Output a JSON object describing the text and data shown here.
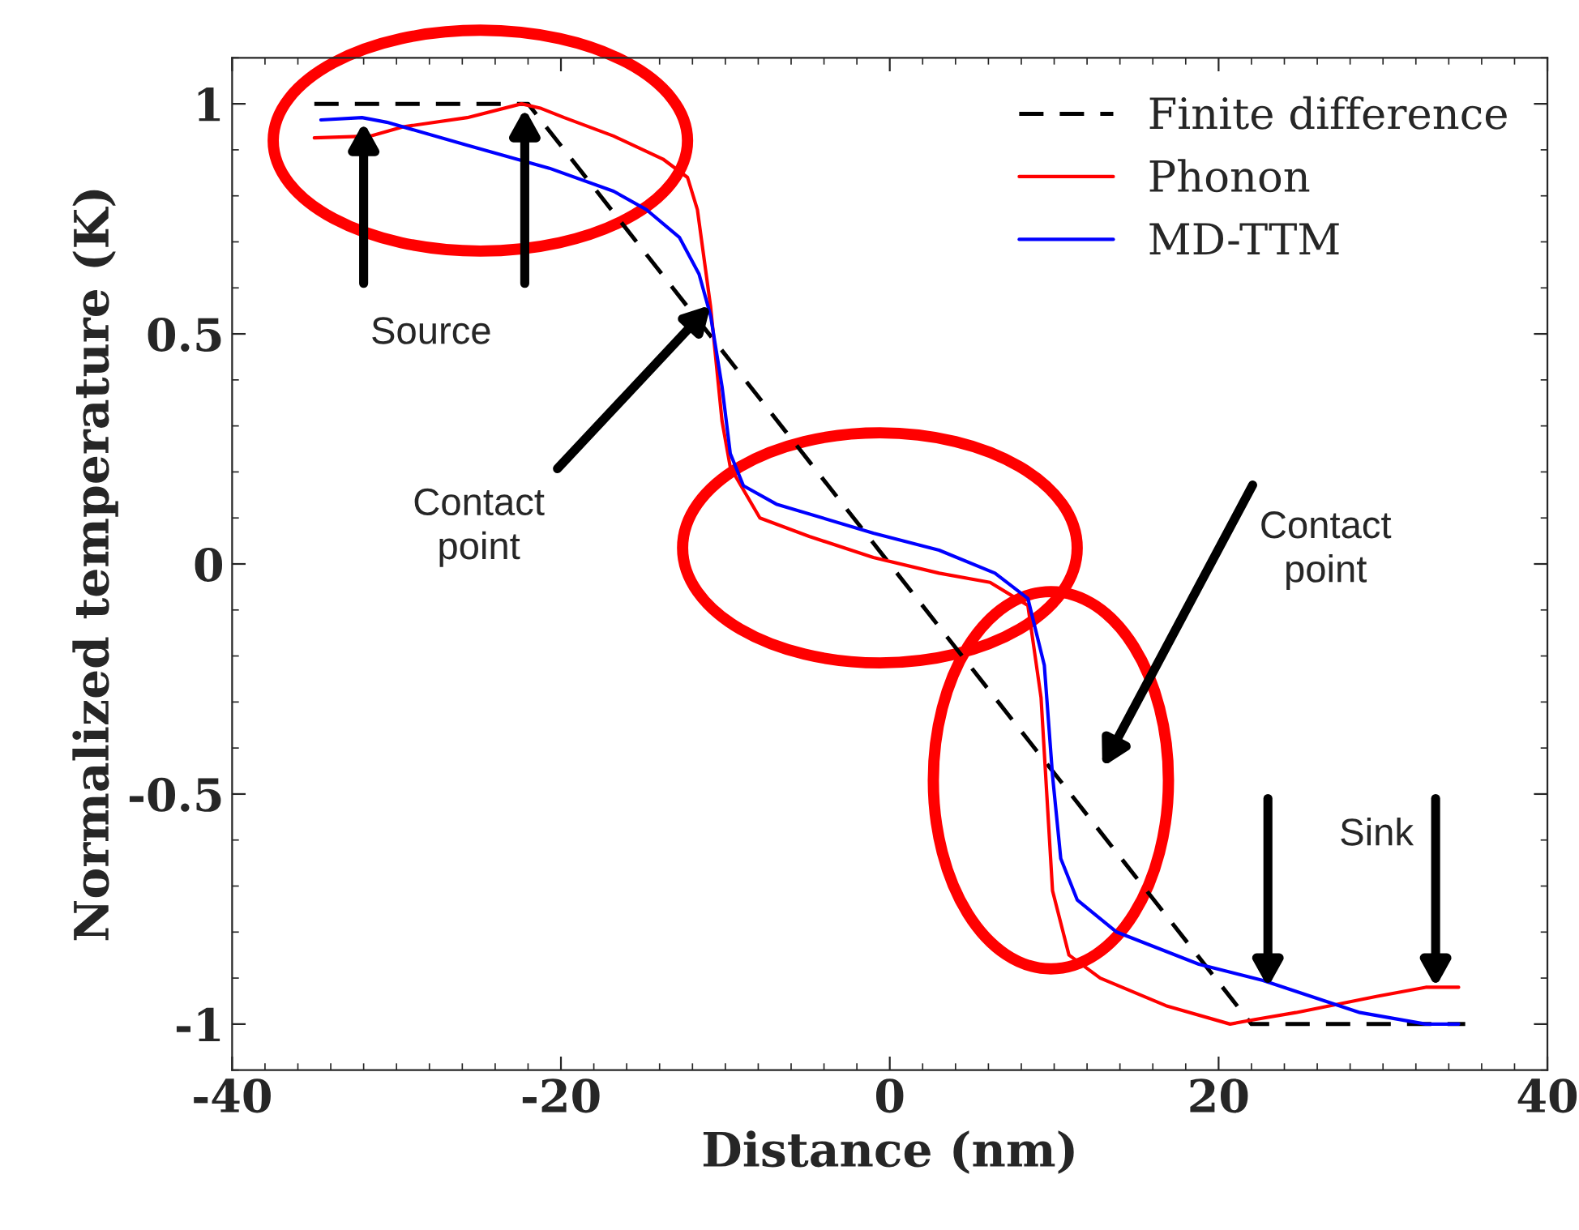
{
  "chart_data": {
    "type": "line",
    "xlabel": "Distance (nm)",
    "ylabel": "Normalized temperature (K)",
    "xlim": [
      -40,
      40
    ],
    "ylim": [
      -1.1,
      1.1
    ],
    "xticks": [
      -40,
      -20,
      0,
      20,
      40
    ],
    "yticks": [
      -1,
      -0.5,
      0,
      0.5,
      1
    ],
    "legend": "top right",
    "grid": false,
    "series": [
      {
        "name": "Finite difference",
        "color": "#000000",
        "line_style": "dashed",
        "x": [
          -35,
          -22,
          22,
          35
        ],
        "values": [
          1,
          1,
          -1,
          -1
        ]
      },
      {
        "name": "Phonon",
        "color": "#ff0000",
        "x": [
          -35,
          -31.6,
          -29.6,
          -25.7,
          -22.4,
          -21.2,
          -19.8,
          -16.8,
          -13.8,
          -12.3,
          -11.7,
          -10.9,
          -10.2,
          -9.7,
          -7.9,
          -4.9,
          -1,
          3,
          6.1,
          8.4,
          9.2,
          9.9,
          10.9,
          12.8,
          16.8,
          20.7,
          22.2,
          24.7,
          29.6,
          32.6,
          34.6
        ],
        "values": [
          0.926,
          0.93,
          0.95,
          0.97,
          1.0,
          0.99,
          0.97,
          0.93,
          0.88,
          0.84,
          0.77,
          0.56,
          0.31,
          0.21,
          0.1,
          0.06,
          0.014,
          -0.02,
          -0.04,
          -0.09,
          -0.29,
          -0.71,
          -0.85,
          -0.9,
          -0.96,
          -1.0,
          -0.99,
          -0.975,
          -0.94,
          -0.92,
          -0.92
        ]
      },
      {
        "name": "MD-TTM",
        "color": "#0000ff",
        "x": [
          -34.6,
          -32.1,
          -30.6,
          -25.7,
          -20.7,
          -16.8,
          -14.8,
          -12.8,
          -11.6,
          -10.9,
          -10.2,
          -9.7,
          -8.9,
          -6.9,
          -1,
          3,
          6.4,
          8.4,
          9.4,
          9.9,
          10.4,
          11.4,
          13.8,
          18.8,
          22.7,
          28.6,
          32.6,
          34.6
        ],
        "values": [
          0.965,
          0.97,
          0.96,
          0.91,
          0.86,
          0.81,
          0.77,
          0.71,
          0.63,
          0.54,
          0.385,
          0.24,
          0.17,
          0.13,
          0.067,
          0.03,
          -0.02,
          -0.075,
          -0.22,
          -0.46,
          -0.64,
          -0.73,
          -0.8,
          -0.87,
          -0.905,
          -0.975,
          -1.0,
          -1.0
        ]
      }
    ],
    "annotations": [
      {
        "text": "Source",
        "x": -32,
        "y": 0.97
      },
      {
        "text": "Contact\npoint",
        "x": -10.7,
        "y": 0.57
      },
      "Contact\npoint",
      "Sink"
    ]
  }
}
